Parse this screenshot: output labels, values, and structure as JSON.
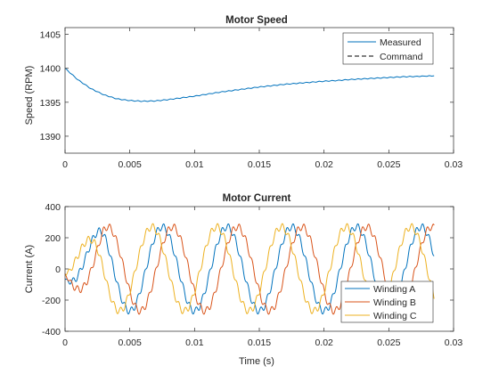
{
  "colors": {
    "axes": "#262626",
    "winding_a": "#0072BD",
    "winding_b": "#D95319",
    "winding_c": "#EDB120",
    "command": "#000000"
  },
  "chart_data": [
    {
      "type": "line",
      "title": "Motor Speed",
      "xlabel": "",
      "ylabel": "Speed (RPM)",
      "xlim": [
        0,
        0.03
      ],
      "ylim": [
        1387.5,
        1406
      ],
      "xticks": [
        0,
        0.005,
        0.01,
        0.015,
        0.02,
        0.025,
        0.03
      ],
      "xtick_labels": [
        "0",
        "0.005",
        "0.01",
        "0.015",
        "0.02",
        "0.025",
        "0.03"
      ],
      "yticks": [
        1390,
        1395,
        1400,
        1405
      ],
      "ytick_labels": [
        "1390",
        "1395",
        "1400",
        "1405"
      ],
      "grid": false,
      "legend": "top-right",
      "series": [
        {
          "name": "Measured",
          "style": "solid",
          "color": "#0072BD",
          "x": [
            0,
            0.001,
            0.002,
            0.003,
            0.004,
            0.005,
            0.006,
            0.007,
            0.008,
            0.009,
            0.01,
            0.011,
            0.012,
            0.013,
            0.014,
            0.015,
            0.016,
            0.017,
            0.018,
            0.019,
            0.02,
            0.021,
            0.022,
            0.023,
            0.024,
            0.025,
            0.026,
            0.027,
            0.0285
          ],
          "values": [
            1400.0,
            1398.3,
            1397.0,
            1396.1,
            1395.5,
            1395.25,
            1395.15,
            1395.2,
            1395.4,
            1395.65,
            1395.9,
            1396.2,
            1396.5,
            1396.75,
            1397.0,
            1397.25,
            1397.45,
            1397.65,
            1397.8,
            1397.95,
            1398.1,
            1398.2,
            1398.35,
            1398.45,
            1398.55,
            1398.65,
            1398.75,
            1398.8,
            1398.9
          ]
        },
        {
          "name": "Command",
          "style": "dashed",
          "color": "#000000",
          "x": [],
          "values": []
        }
      ]
    },
    {
      "type": "line",
      "title": "Motor Current",
      "xlabel": "Time (s)",
      "ylabel": "Current (A)",
      "xlim": [
        0,
        0.03
      ],
      "ylim": [
        -400,
        400
      ],
      "xticks": [
        0,
        0.005,
        0.01,
        0.015,
        0.02,
        0.025,
        0.03
      ],
      "xtick_labels": [
        "0",
        "0.005",
        "0.01",
        "0.015",
        "0.02",
        "0.025",
        "0.03"
      ],
      "yticks": [
        -400,
        -200,
        0,
        200,
        400
      ],
      "ytick_labels": [
        "-400",
        "-200",
        "0",
        "200",
        "400"
      ],
      "grid": false,
      "legend": "bottom-right",
      "x_end": 0.0285,
      "electrical_frequency_hz": 200,
      "ripple_frequency_hz": 2000,
      "ripple_amplitude": 22,
      "series": [
        {
          "name": "Winding A",
          "color": "#0072BD",
          "peak_amplitude": 270,
          "initial_value": 0,
          "peak_times": [
            0.0075,
            0.0125,
            0.0175,
            0.0225,
            0.0275
          ]
        },
        {
          "name": "Winding B",
          "color": "#D95319",
          "peak_amplitude": 270,
          "initial_value": 0,
          "peak_times": [
            0.0033,
            0.0083,
            0.0133,
            0.0183,
            0.0233
          ]
        },
        {
          "name": "Winding C",
          "color": "#EDB120",
          "peak_amplitude": 270,
          "initial_value": 0,
          "peak_times": [
            0.0017,
            0.0067,
            0.0117,
            0.0167,
            0.0217,
            0.0267
          ]
        }
      ]
    }
  ]
}
